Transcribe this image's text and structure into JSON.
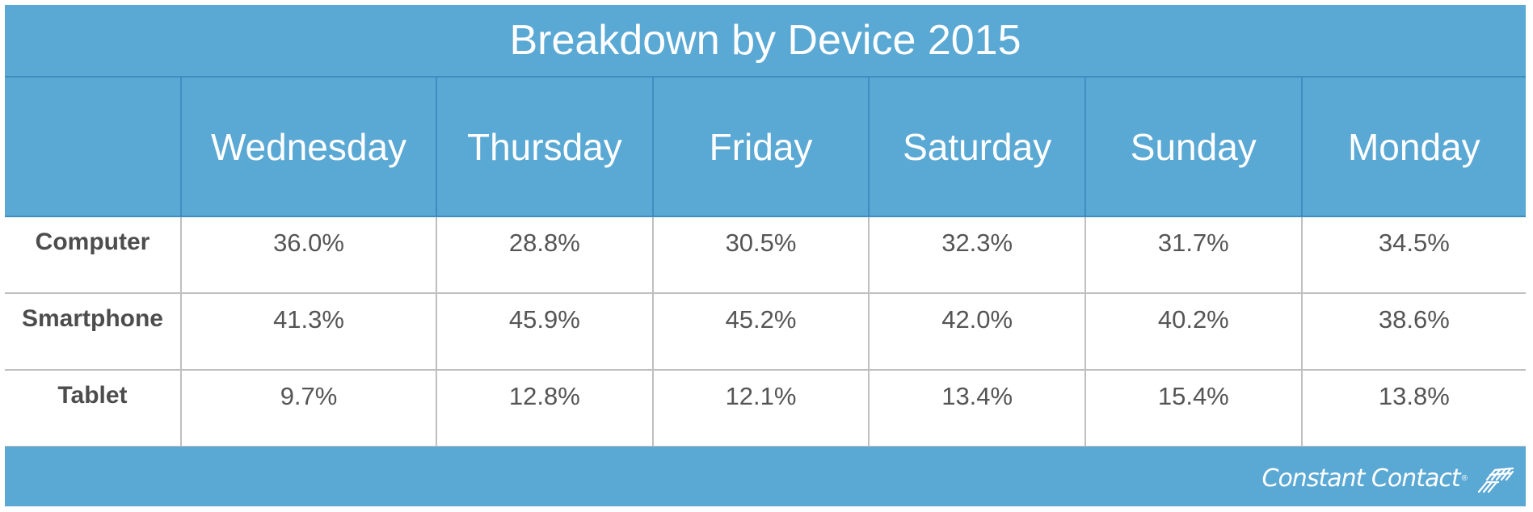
{
  "chart_data": {
    "type": "table",
    "title": "Breakdown by Device 2015",
    "columns": [
      "",
      "Wednesday",
      "Thursday",
      "Friday",
      "Saturday",
      "Sunday",
      "Monday"
    ],
    "rows": [
      {
        "label": "Computer",
        "values": [
          "36.0%",
          "28.8%",
          "30.5%",
          "32.3%",
          "31.7%",
          "34.5%"
        ]
      },
      {
        "label": "Smartphone",
        "values": [
          "41.3%",
          "45.9%",
          "45.2%",
          "42.0%",
          "40.2%",
          "38.6%"
        ]
      },
      {
        "label": "Tablet",
        "values": [
          "9.7%",
          "12.8%",
          "12.1%",
          "13.4%",
          "15.4%",
          "13.8%"
        ]
      }
    ]
  },
  "footer": {
    "brand": "Constant Contact",
    "brand_mark": "®"
  },
  "colors": {
    "header_background": "#5aa8d4",
    "header_text": "#ffffff",
    "cell_background": "#ffffff",
    "cell_text": "#555555",
    "grid_line": "#bfbfbf"
  }
}
